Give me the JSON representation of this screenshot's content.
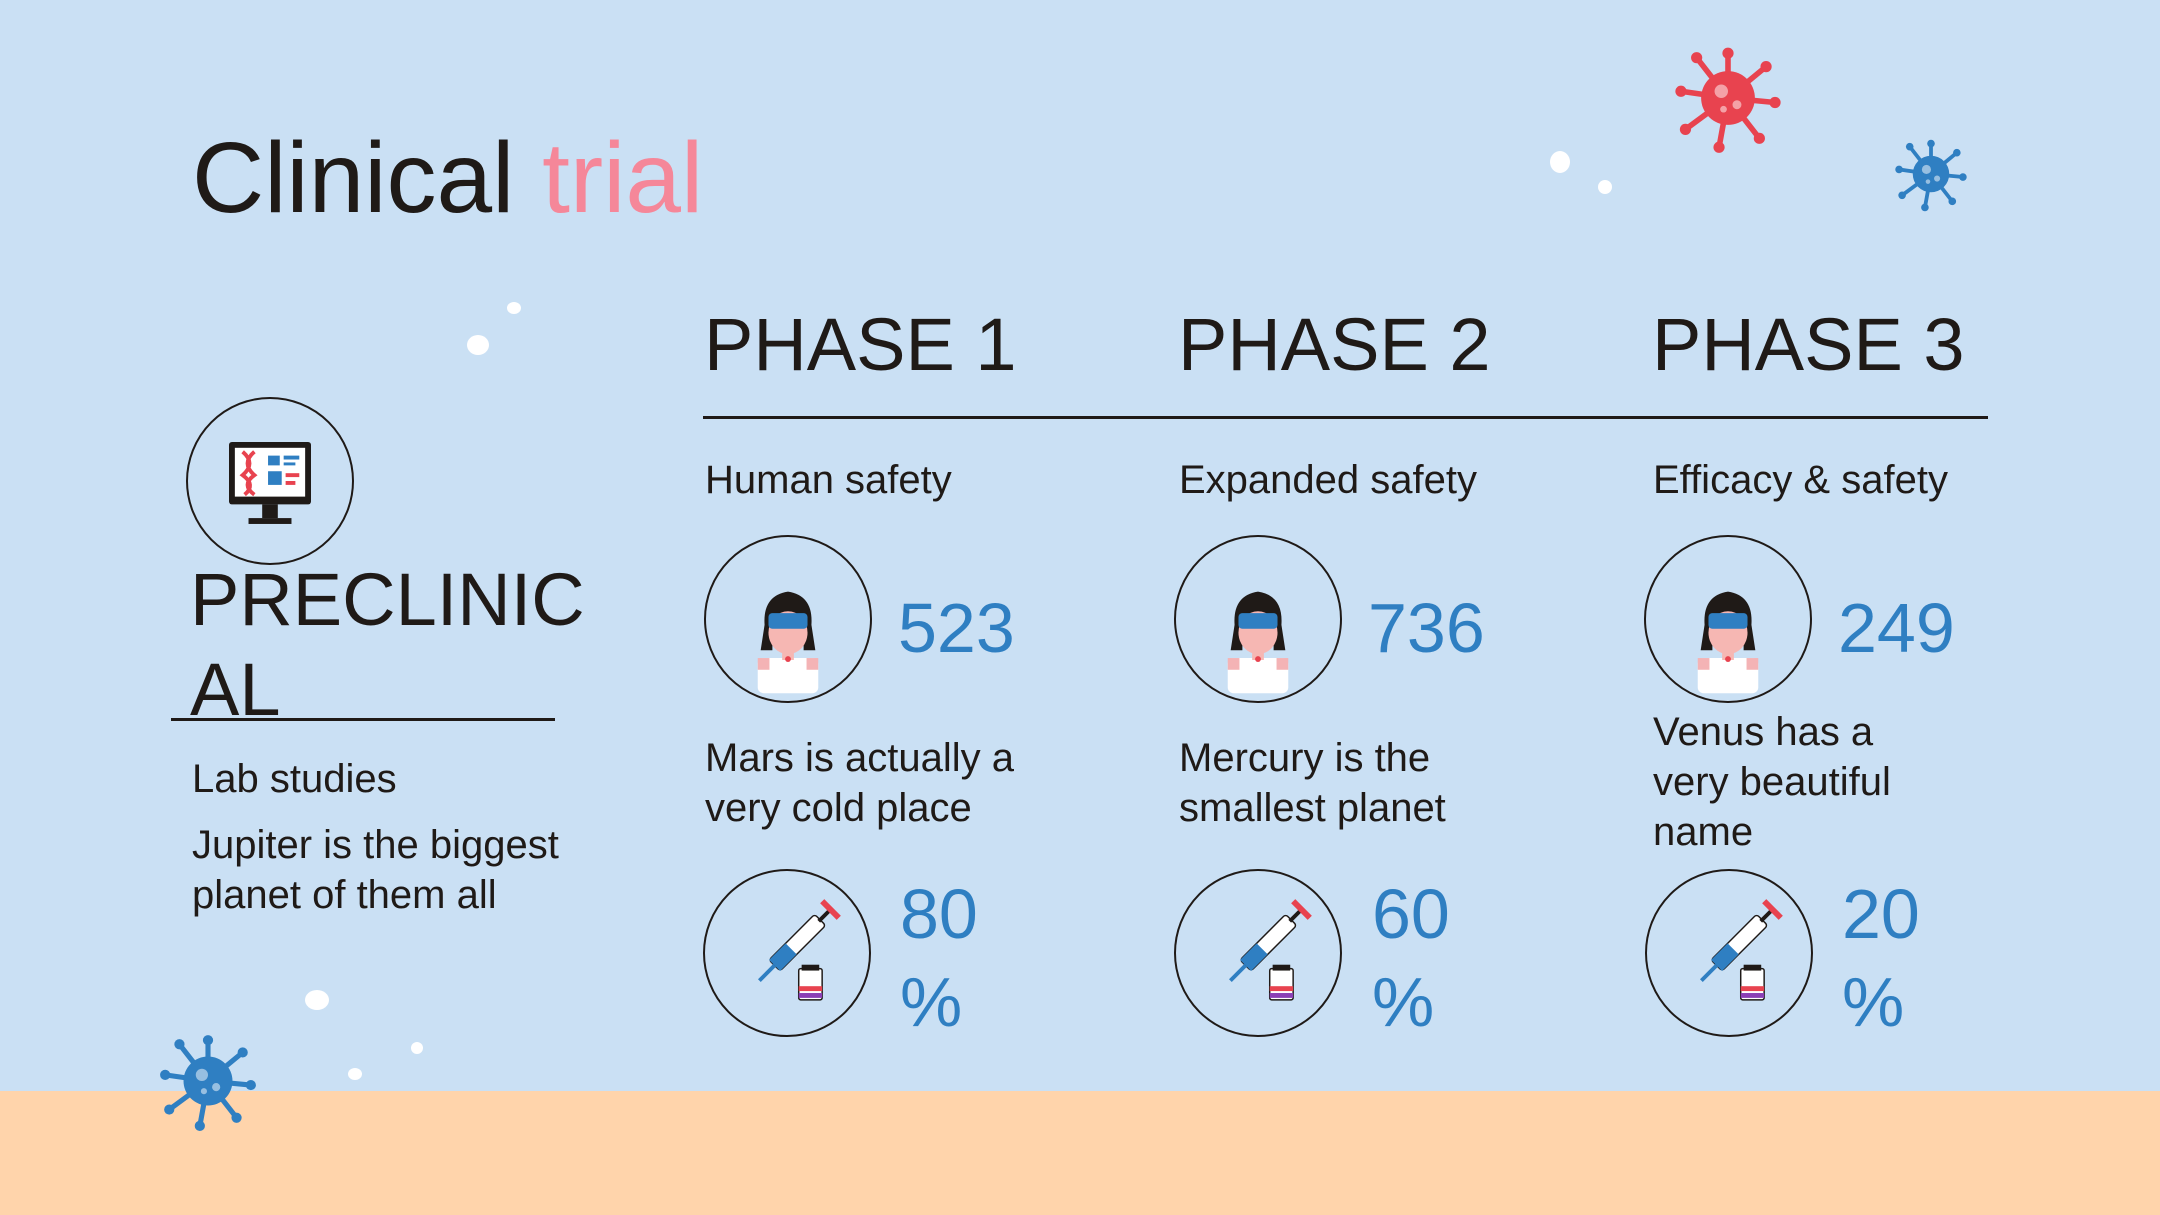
{
  "title": {
    "main": "Clinical",
    "accent": "trial"
  },
  "preclinical": {
    "heading": "PRECLINICAL",
    "subtitle": "Lab studies",
    "description": "Jupiter is the biggest planet of them all"
  },
  "phases": [
    {
      "heading": "PHASE 1",
      "subtitle": "Human safety",
      "participants": "523",
      "description": "Mars is actually a very cold place",
      "rate_value": "80",
      "rate_unit": "%"
    },
    {
      "heading": "PHASE 2",
      "subtitle": "Expanded safety",
      "participants": "736",
      "description": "Mercury is the smallest planet",
      "rate_value": "60",
      "rate_unit": "%"
    },
    {
      "heading": "PHASE 3",
      "subtitle": "Efficacy & safety",
      "participants": "249",
      "description": "Venus has a very beautiful name",
      "rate_value": "20",
      "rate_unit": "%"
    }
  ],
  "icons": {
    "preclinical": "monitor-dna-icon",
    "participants": "person-with-mask-icon",
    "rate": "syringe-vial-icon",
    "decor": "virus-icon"
  },
  "colors": {
    "background": "#cae0f4",
    "ground": "#ffd4ab",
    "accent_pink": "#f58799",
    "number_blue": "#2f7fc2",
    "virus_red": "#e8434f",
    "virus_blue": "#2f7fc2"
  }
}
